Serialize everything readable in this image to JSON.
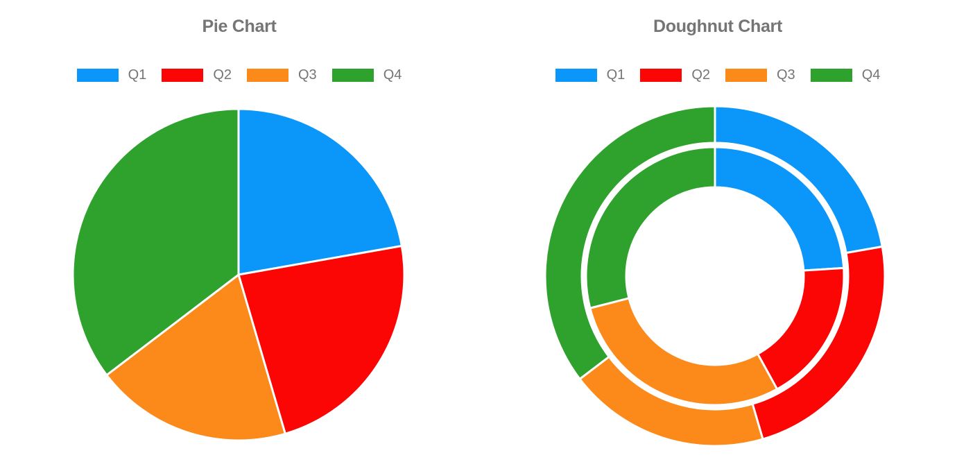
{
  "text_color": "#757575",
  "palette": [
    "#0B96FA",
    "#FB0505",
    "#FC8A1B",
    "#2EA22C"
  ],
  "chart_data": [
    {
      "type": "pie",
      "title": "Pie Chart",
      "categories": [
        "Q1",
        "Q2",
        "Q3",
        "Q4"
      ],
      "values": [
        22,
        23,
        19,
        35
      ],
      "colors": [
        "#0B96FA",
        "#FB0505",
        "#FC8A1B",
        "#2EA22C"
      ],
      "legend_position": "top",
      "start_angle_deg": 0,
      "slice_angles_deg": [
        80,
        83.6,
        69.1,
        127.3
      ]
    },
    {
      "type": "doughnut",
      "title": "Doughnut Chart",
      "categories": [
        "Q1",
        "Q2",
        "Q3",
        "Q4"
      ],
      "series": [
        {
          "name": "outer ring",
          "values": [
            22,
            23,
            19,
            35
          ]
        },
        {
          "name": "inner ring",
          "values": [
            24,
            18,
            29,
            29
          ]
        }
      ],
      "colors": [
        "#0B96FA",
        "#FB0505",
        "#FC8A1B",
        "#2EA22C"
      ],
      "legend_position": "top",
      "start_angle_deg": 0
    }
  ]
}
